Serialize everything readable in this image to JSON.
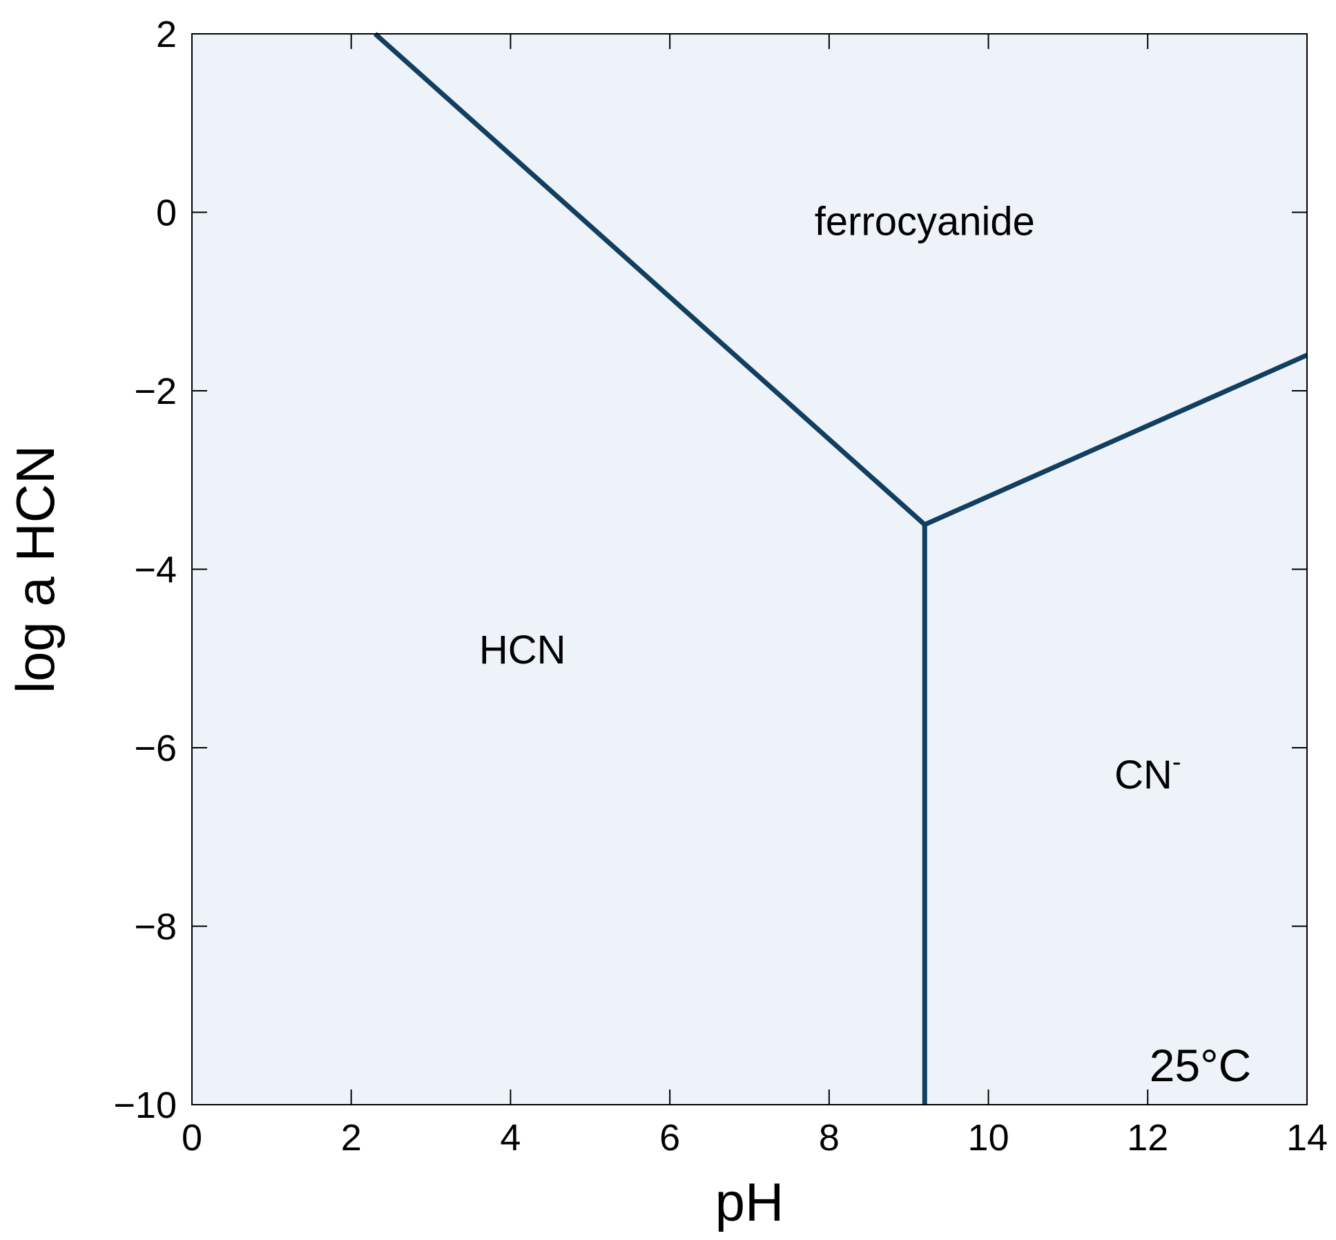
{
  "chart_data": {
    "type": "line",
    "xlabel": "pH",
    "ylabel": "log a HCN",
    "xlim": [
      0,
      14
    ],
    "ylim": [
      -10,
      2
    ],
    "x_ticks": [
      0,
      2,
      4,
      6,
      8,
      10,
      12,
      14
    ],
    "y_ticks": [
      -10,
      -8,
      -6,
      -4,
      -2,
      0,
      2
    ],
    "x_tick_labels": [
      "0",
      "2",
      "4",
      "6",
      "8",
      "10",
      "12",
      "14"
    ],
    "y_tick_labels": [
      "−10",
      "−8",
      "−6",
      "−4",
      "−2",
      "0",
      "2"
    ],
    "grid": false,
    "colors": {
      "background": "#eef3fa",
      "line": "#123e60"
    },
    "series": [
      {
        "x": [
          2.3,
          9.2
        ],
        "y": [
          2.0,
          -3.5
        ]
      },
      {
        "x": [
          9.2,
          14.0
        ],
        "y": [
          -3.5,
          -1.6
        ]
      },
      {
        "x": [
          9.2,
          9.2
        ],
        "y": [
          -3.5,
          -10.0
        ]
      }
    ],
    "region_labels": [
      {
        "text": "ferrocyanide",
        "x": 9.2,
        "y": -0.1
      },
      {
        "text": "HCN",
        "x": 4.15,
        "y": -4.9
      },
      {
        "text": "CN",
        "sup": "-",
        "x": 12.0,
        "y": -6.3
      }
    ],
    "annotation": {
      "text": "25°C",
      "x": 13.3,
      "y": -9.55
    }
  }
}
